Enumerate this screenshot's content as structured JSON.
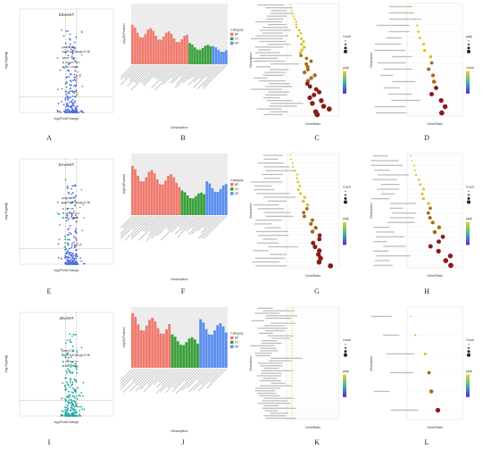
{
  "figure": {
    "panel_letters": [
      "A",
      "B",
      "C",
      "D",
      "E",
      "F",
      "G",
      "H",
      "I",
      "J",
      "K",
      "L"
    ]
  },
  "chart_data": [
    {
      "panel": "A",
      "type": "scatter",
      "title": "EBvsWT",
      "xlabel": "log2FoldChange",
      "ylabel": "-log10(padj)",
      "legend": [
        "padj<0.05",
        "log2FoldChange>0.38"
      ],
      "legend_counts": [
        "UP: 376",
        "DOWN: 417",
        "NO: 26235"
      ],
      "colors": {
        "up": "#e3823b",
        "down": "#27b06f",
        "no": "#4d6be0"
      }
    },
    {
      "panel": "B",
      "type": "bar",
      "xlabel": "Description",
      "ylabel": "-log10(Pvalue)",
      "legend_title": "Category",
      "series": [
        {
          "name": "BP",
          "color": "#f07a6e",
          "count": 22,
          "level": 0.65
        },
        {
          "name": "CC",
          "color": "#3aa13a",
          "count": 9,
          "level": 0.35
        },
        {
          "name": "MF",
          "color": "#5b8ff0",
          "count": 6,
          "level": 0.3
        }
      ]
    },
    {
      "panel": "C",
      "type": "scatter",
      "xlabel": "GeneRatio",
      "ylabel": "Description",
      "legend_titles": [
        "Count",
        "padj"
      ]
    },
    {
      "panel": "D",
      "type": "scatter",
      "xlabel": "GeneRatio",
      "ylabel": "Description",
      "legend_titles": [
        "padj",
        "Count"
      ]
    },
    {
      "panel": "E",
      "type": "scatter",
      "title": "BAvsWT",
      "xlabel": "log2FoldChange",
      "ylabel": "-log10(padj)",
      "legend": [
        "padj<0.05",
        "log2FoldChange>0.38"
      ],
      "legend_counts": [
        "UP: 55",
        "DOWN: 417",
        "NO: 26485"
      ],
      "colors": {
        "up": "#e3823b",
        "down": "#27b06f",
        "no": "#4d6be0"
      }
    },
    {
      "panel": "F",
      "type": "bar",
      "xlabel": "Description",
      "ylabel": "-log10(Pvalue)",
      "legend_title": "Category",
      "series": [
        {
          "name": "BP",
          "color": "#f07a6e",
          "count": 18,
          "level": 0.8
        },
        {
          "name": "CC",
          "color": "#3aa13a",
          "count": 9,
          "level": 0.4
        },
        {
          "name": "MF",
          "color": "#5b8ff0",
          "count": 8,
          "level": 0.55
        }
      ]
    },
    {
      "panel": "G",
      "type": "scatter",
      "xlabel": "GeneRatio",
      "ylabel": "Description",
      "legend_titles": [
        "Count",
        "padj"
      ]
    },
    {
      "panel": "H",
      "type": "scatter",
      "xlabel": "GeneRatio",
      "ylabel": "Description",
      "legend_titles": [
        "Count",
        "padj"
      ]
    },
    {
      "panel": "I",
      "type": "scatter",
      "title": "JBvsWT",
      "xlabel": "log2FoldChange",
      "ylabel": "-log10(padj)",
      "legend": [
        "padj<0.05",
        "log2FoldChange>0.38"
      ],
      "legend_counts": [
        "DOWN: 57",
        "NO: 27301"
      ],
      "colors": {
        "up": "#e3823b",
        "down": "#27b06f",
        "no": "#1aa3a3"
      }
    },
    {
      "panel": "J",
      "type": "bar",
      "xlabel": "Description",
      "ylabel": "-log10(Pvalue)",
      "legend_title": "Category",
      "series": [
        {
          "name": "BP",
          "color": "#f07a6e",
          "count": 14,
          "level": 0.9
        },
        {
          "name": "CC",
          "color": "#3aa13a",
          "count": 10,
          "level": 0.55
        },
        {
          "name": "MF",
          "color": "#5b8ff0",
          "count": 10,
          "level": 0.8
        }
      ]
    },
    {
      "panel": "K",
      "type": "scatter",
      "xlabel": "GeneRatio",
      "ylabel": "Description",
      "legend_titles": [
        "Count",
        "padj"
      ]
    },
    {
      "panel": "L",
      "type": "scatter",
      "xlabel": "GeneRatio",
      "ylabel": "Description",
      "legend_titles": [
        "Count",
        "padj"
      ]
    }
  ]
}
